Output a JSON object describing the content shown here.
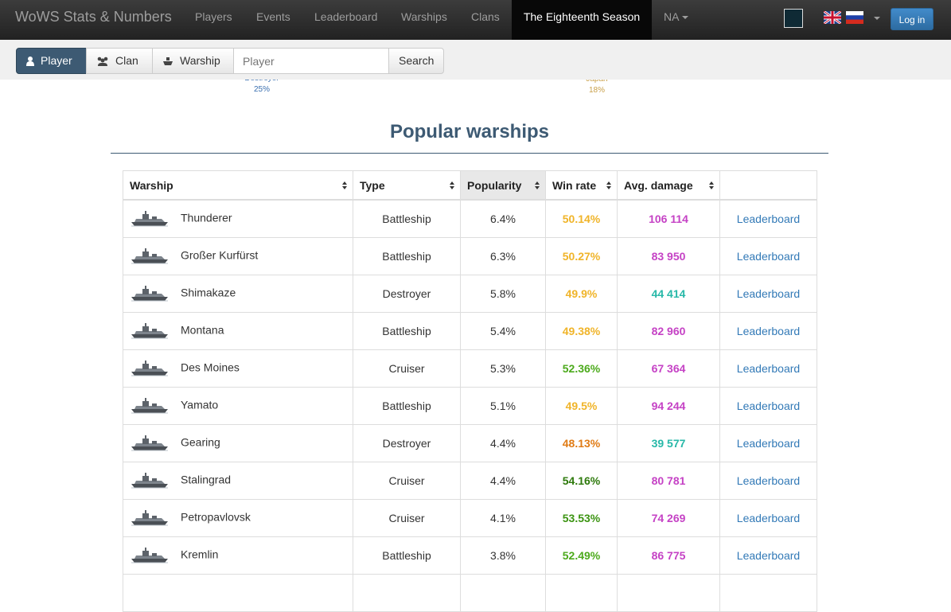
{
  "navbar": {
    "brand": "WoWS Stats & Numbers",
    "links": [
      "Players",
      "Events",
      "Leaderboard",
      "Warships",
      "Clans",
      "The Eighteenth Season"
    ],
    "region": "NA",
    "login": "Log in"
  },
  "search": {
    "tabs": [
      "Player",
      "Clan",
      "Warship"
    ],
    "placeholder": "Player",
    "button": "Search"
  },
  "chart_fragments": [
    {
      "label": "Destroyer",
      "value": "25%",
      "color": "#3a6fb0"
    },
    {
      "label": "Japan",
      "value": "18%",
      "color": "#c9a04a"
    }
  ],
  "heading": "Popular warships",
  "table": {
    "headers": [
      "Warship",
      "Type",
      "Popularity",
      "Win rate",
      "Avg. damage"
    ],
    "rows": [
      {
        "warship": "Thunderer",
        "type": "Battleship",
        "popularity": "6.4%",
        "win_rate": "50.14%",
        "win_rate_color": "#f0b429",
        "avg_damage": "106 114",
        "avg_damage_color": "#c542c5",
        "link": "Leaderboard"
      },
      {
        "warship": "Großer Kurfürst",
        "type": "Battleship",
        "popularity": "6.3%",
        "win_rate": "50.27%",
        "win_rate_color": "#f0b429",
        "avg_damage": "83 950",
        "avg_damage_color": "#c542c5",
        "link": "Leaderboard"
      },
      {
        "warship": "Shimakaze",
        "type": "Destroyer",
        "popularity": "5.8%",
        "win_rate": "49.9%",
        "win_rate_color": "#f0b429",
        "avg_damage": "44 414",
        "avg_damage_color": "#27b8a8",
        "link": "Leaderboard"
      },
      {
        "warship": "Montana",
        "type": "Battleship",
        "popularity": "5.4%",
        "win_rate": "49.38%",
        "win_rate_color": "#f0b429",
        "avg_damage": "82 960",
        "avg_damage_color": "#c542c5",
        "link": "Leaderboard"
      },
      {
        "warship": "Des Moines",
        "type": "Cruiser",
        "popularity": "5.3%",
        "win_rate": "52.36%",
        "win_rate_color": "#4caa1c",
        "avg_damage": "67 364",
        "avg_damage_color": "#c542c5",
        "link": "Leaderboard"
      },
      {
        "warship": "Yamato",
        "type": "Battleship",
        "popularity": "5.1%",
        "win_rate": "49.5%",
        "win_rate_color": "#f0b429",
        "avg_damage": "94 244",
        "avg_damage_color": "#c542c5",
        "link": "Leaderboard"
      },
      {
        "warship": "Gearing",
        "type": "Destroyer",
        "popularity": "4.4%",
        "win_rate": "48.13%",
        "win_rate_color": "#e07b15",
        "avg_damage": "39 577",
        "avg_damage_color": "#27b8a8",
        "link": "Leaderboard"
      },
      {
        "warship": "Stalingrad",
        "type": "Cruiser",
        "popularity": "4.4%",
        "win_rate": "54.16%",
        "win_rate_color": "#2e7a0c",
        "avg_damage": "80 781",
        "avg_damage_color": "#c542c5",
        "link": "Leaderboard"
      },
      {
        "warship": "Petropavlovsk",
        "type": "Cruiser",
        "popularity": "4.1%",
        "win_rate": "53.53%",
        "win_rate_color": "#3c9412",
        "avg_damage": "74 269",
        "avg_damage_color": "#c542c5",
        "link": "Leaderboard"
      },
      {
        "warship": "Kremlin",
        "type": "Battleship",
        "popularity": "3.8%",
        "win_rate": "52.49%",
        "win_rate_color": "#4caa1c",
        "avg_damage": "86 775",
        "avg_damage_color": "#c542c5",
        "link": "Leaderboard"
      }
    ]
  }
}
